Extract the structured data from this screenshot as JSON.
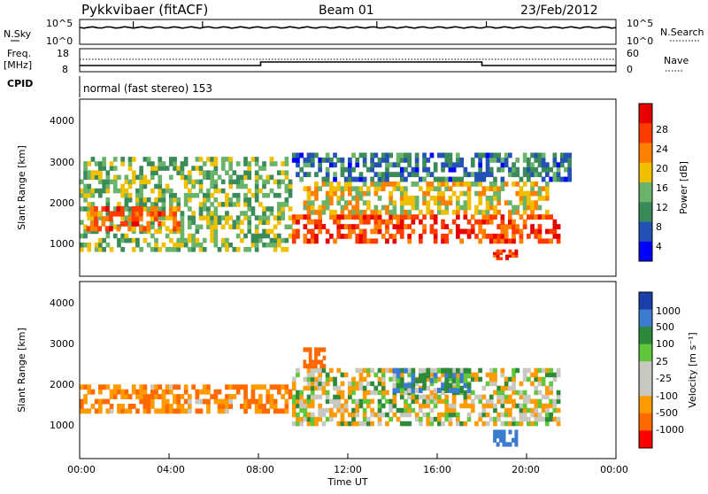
{
  "header": {
    "station": "Pykkvibaer (fitACF)",
    "beam": "Beam 01",
    "date": "23/Feb/2012"
  },
  "noise_panel": {
    "left_label": "N.Sky",
    "right_label": "N.Search",
    "left_ticks": [
      "10^5",
      "10^0"
    ],
    "right_ticks": [
      "10^5",
      "10^0"
    ]
  },
  "freq_panel": {
    "left_label_1": "Freq.",
    "left_label_2": "[MHz]",
    "right_label": "Nave",
    "left_ticks": [
      "18",
      "8"
    ],
    "right_ticks": [
      "60",
      "0"
    ]
  },
  "cpid_panel": {
    "label": "CPID",
    "text": "normal (fast stereo) 153"
  },
  "power_panel": {
    "ylabel": "Slant Range [km]",
    "y_ticks": [
      "4000",
      "3000",
      "2000",
      "1000"
    ],
    "colorbar_label": "Power [dB]",
    "colorbar_ticks": [
      "28",
      "24",
      "20",
      "16",
      "12",
      "8",
      "4"
    ],
    "colors": [
      "#0000ff",
      "#2451b5",
      "#3a8a5a",
      "#69b36a",
      "#f0c000",
      "#ff7f00",
      "#ff3c00",
      "#e60000"
    ]
  },
  "velocity_panel": {
    "ylabel": "Slant Range [km]",
    "y_ticks": [
      "4000",
      "3000",
      "2000",
      "1000"
    ],
    "colorbar_label": "Velocity [m s⁻¹]",
    "colorbar_ticks": [
      "1000",
      "500",
      "100",
      "25",
      "-25",
      "-100",
      "-500",
      "-1000"
    ],
    "colors": [
      "#1b3fa8",
      "#3b7bd0",
      "#2d8a3a",
      "#5ec73a",
      "#c8c8c0",
      "#c8c8c0",
      "#ff9a00",
      "#ff6a00",
      "#ff0000"
    ]
  },
  "xaxis": {
    "ticks": [
      "00:00",
      "04:00",
      "08:00",
      "12:00",
      "16:00",
      "20:00",
      "00:00"
    ],
    "label": "Time UT"
  },
  "chart_data": {
    "type": "heatmap",
    "title": "Pykkvibaer (fitACF)",
    "x_unit": "hours UT",
    "xlim": [
      0,
      24
    ],
    "ylim": [
      200,
      4500
    ],
    "power_bands": [
      {
        "t0": 0,
        "t1": 9.5,
        "r0": 800,
        "r1": 3100,
        "level_db": 14
      },
      {
        "t0": 0.3,
        "t1": 4.5,
        "r0": 1300,
        "r1": 1900,
        "level_db": 24
      },
      {
        "t0": 9.5,
        "t1": 21.5,
        "r0": 1000,
        "r1": 1700,
        "level_db": 26
      },
      {
        "t0": 10,
        "t1": 21,
        "r0": 1700,
        "r1": 2500,
        "level_db": 18
      },
      {
        "t0": 9.5,
        "t1": 22,
        "r0": 2500,
        "r1": 3200,
        "level_db": 8
      },
      {
        "t0": 18.5,
        "t1": 19.6,
        "r0": 600,
        "r1": 850,
        "level_db": 28
      }
    ],
    "velocity_bands": [
      {
        "t0": 0,
        "t1": 9.5,
        "r0": 1300,
        "r1": 2000,
        "velocity": -100
      },
      {
        "t0": 9.5,
        "t1": 21.5,
        "r0": 1000,
        "r1": 2400,
        "velocity": 0
      },
      {
        "t0": 14,
        "t1": 17.5,
        "r0": 1800,
        "r1": 2400,
        "velocity": 100
      },
      {
        "t0": 10,
        "t1": 11,
        "r0": 2400,
        "r1": 2900,
        "velocity": -200
      },
      {
        "t0": 18.5,
        "t1": 19.6,
        "r0": 500,
        "r1": 900,
        "velocity": 200
      }
    ]
  }
}
